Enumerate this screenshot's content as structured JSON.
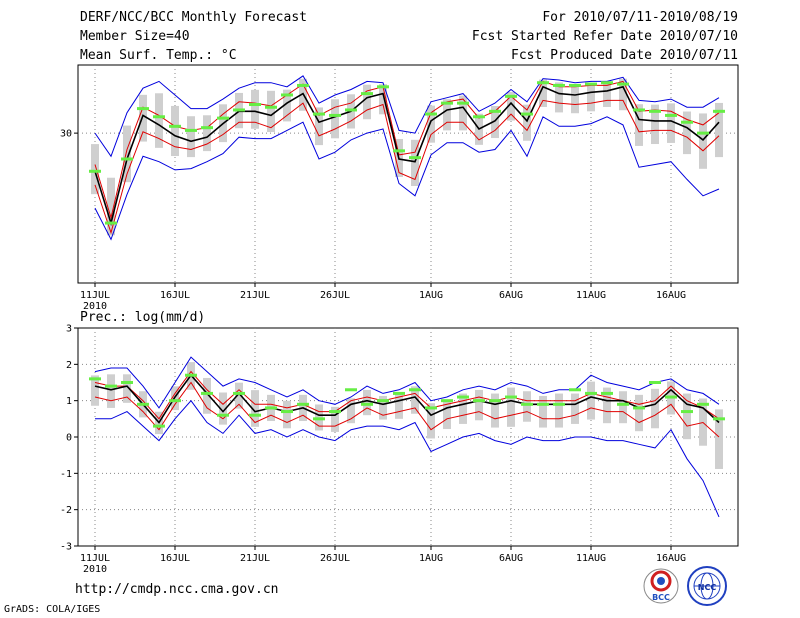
{
  "header": {
    "title": "DERF/NCC/BCC Monthly Forecast",
    "member_size": "Member Size=40",
    "var1_label": "Mean Surf. Temp.: °C",
    "period": "For 2010/07/11-2010/08/19",
    "fcst_started": "Fcst Started Refer Date 2010/07/10",
    "fcst_produced": "Fcst Produced Date 2010/07/11"
  },
  "footer": {
    "url": "http://cmdp.ncc.cma.gov.cn",
    "grads": "GrADS: COLA/IGES",
    "logo_left": "BCC",
    "logo_right": "NCC"
  },
  "colors": {
    "envelope": "#0000dd",
    "spread": "#e00000",
    "mean": "#000000",
    "observed": "#66ee44",
    "box": "#cfcfcf",
    "grid": "#888888"
  },
  "chart_data": [
    {
      "type": "line",
      "title": "Mean Surf. Temp.: °C",
      "ylim": [
        19,
        35
      ],
      "yticks": [
        30
      ],
      "x_tick_labels": [
        "11JUL",
        "16JUL",
        "21JUL",
        "26JUL",
        "1AUG",
        "6AUG",
        "11AUG",
        "16AUG"
      ],
      "x_tick_days": [
        0,
        5,
        10,
        15,
        21,
        26,
        31,
        36
      ],
      "year_label": "2010",
      "days": 40,
      "series": [
        {
          "name": "max",
          "values": [
            30.0,
            28.3,
            31.5,
            33.3,
            33.8,
            32.8,
            31.8,
            31.8,
            32.5,
            33.3,
            33.7,
            33.7,
            33.4,
            34.2,
            32.2,
            32.8,
            33.2,
            33.8,
            33.7,
            30.2,
            30.0,
            32.3,
            32.6,
            32.9,
            31.6,
            32.2,
            33.2,
            32.3,
            34.0,
            33.9,
            33.7,
            33.8,
            33.8,
            34.1,
            32.4,
            32.3,
            32.5,
            31.9,
            31.9,
            32.6
          ]
        },
        {
          "name": "upper",
          "values": [
            27.7,
            23.8,
            28.8,
            31.9,
            31.3,
            30.5,
            30.2,
            30.4,
            31.4,
            32.3,
            32.2,
            32.0,
            32.8,
            33.6,
            31.3,
            31.9,
            32.2,
            33.1,
            33.4,
            28.4,
            28.6,
            31.5,
            32.3,
            32.5,
            31.1,
            31.6,
            32.7,
            31.7,
            33.8,
            33.4,
            33.4,
            33.5,
            33.5,
            33.8,
            31.6,
            31.7,
            31.6,
            31.0,
            30.6,
            31.5
          ]
        },
        {
          "name": "mean",
          "values": [
            27.2,
            23.4,
            28.1,
            31.3,
            30.6,
            29.8,
            29.4,
            29.7,
            30.7,
            31.6,
            31.6,
            31.3,
            32.2,
            32.9,
            30.8,
            31.2,
            31.6,
            32.6,
            32.9,
            28.1,
            27.9,
            30.9,
            31.7,
            31.9,
            30.3,
            30.9,
            32.2,
            30.9,
            33.4,
            32.9,
            32.8,
            33.0,
            33.1,
            33.4,
            31.0,
            30.9,
            30.9,
            30.4,
            29.5,
            30.8
          ]
        },
        {
          "name": "lower",
          "values": [
            26.2,
            22.7,
            27.0,
            30.1,
            29.6,
            29.0,
            28.8,
            29.2,
            29.9,
            30.8,
            30.8,
            30.4,
            31.3,
            32.2,
            29.8,
            30.3,
            30.9,
            31.7,
            32.1,
            27.1,
            26.6,
            29.9,
            30.8,
            30.8,
            29.5,
            30.2,
            31.4,
            30.2,
            32.4,
            32.2,
            32.1,
            32.2,
            32.4,
            32.4,
            30.1,
            30.2,
            30.2,
            29.7,
            28.7,
            29.8
          ]
        },
        {
          "name": "min",
          "values": [
            24.5,
            22.2,
            25.5,
            28.3,
            27.9,
            27.3,
            27.4,
            27.9,
            28.5,
            29.7,
            29.6,
            29.6,
            30.2,
            30.8,
            28.1,
            28.6,
            29.5,
            30.0,
            30.3,
            26.3,
            25.4,
            28.4,
            29.3,
            29.3,
            28.6,
            28.8,
            30.2,
            28.3,
            31.2,
            30.5,
            30.5,
            30.7,
            31.2,
            30.6,
            27.5,
            27.7,
            27.9,
            26.6,
            25.4,
            25.9
          ]
        },
        {
          "name": "observed",
          "values": [
            27.2,
            23.4,
            28.1,
            31.8,
            31.2,
            30.5,
            30.2,
            30.4,
            31.1,
            31.7,
            32.1,
            31.9,
            32.8,
            33.5,
            31.4,
            31.3,
            31.7,
            32.9,
            33.4,
            28.7,
            28.2,
            31.4,
            32.2,
            32.2,
            31.2,
            31.6,
            32.7,
            31.4,
            33.7,
            33.5,
            33.5,
            33.6,
            33.7,
            33.6,
            31.7,
            31.6,
            31.3,
            30.8,
            30.0,
            31.6
          ]
        }
      ]
    },
    {
      "type": "line",
      "title": "Prec.: log(mm/d)",
      "ylim": [
        -3,
        3
      ],
      "yticks": [
        -3,
        -2,
        -1,
        0,
        1,
        2,
        3
      ],
      "x_tick_labels": [
        "11JUL",
        "16JUL",
        "21JUL",
        "26JUL",
        "1AUG",
        "6AUG",
        "11AUG",
        "16AUG"
      ],
      "x_tick_days": [
        0,
        5,
        10,
        15,
        21,
        26,
        31,
        36
      ],
      "year_label": "2010",
      "days": 40,
      "series": [
        {
          "name": "max",
          "values": [
            1.8,
            1.9,
            1.9,
            1.4,
            0.8,
            1.5,
            2.2,
            1.8,
            1.4,
            1.6,
            1.5,
            1.3,
            1.1,
            1.3,
            1.0,
            0.9,
            1.1,
            1.4,
            1.2,
            1.3,
            1.5,
            1.0,
            1.1,
            1.3,
            1.4,
            1.3,
            1.5,
            1.4,
            1.2,
            1.3,
            1.3,
            1.7,
            1.5,
            1.4,
            1.3,
            1.5,
            1.6,
            1.3,
            1.2,
            0.9
          ]
        },
        {
          "name": "upper",
          "values": [
            1.5,
            1.4,
            1.4,
            1.0,
            0.5,
            1.2,
            1.8,
            1.3,
            0.9,
            1.3,
            0.9,
            0.9,
            0.8,
            0.9,
            0.7,
            0.7,
            1.0,
            1.1,
            1.0,
            1.1,
            1.2,
            0.8,
            0.9,
            1.0,
            1.1,
            1.0,
            1.1,
            1.0,
            1.0,
            1.0,
            1.0,
            1.2,
            1.1,
            1.0,
            0.9,
            1.0,
            1.4,
            1.0,
            0.8,
            0.5
          ]
        },
        {
          "name": "mean",
          "values": [
            1.4,
            1.3,
            1.4,
            0.9,
            0.4,
            1.1,
            1.7,
            1.2,
            0.7,
            1.2,
            0.7,
            0.8,
            0.7,
            0.8,
            0.6,
            0.6,
            0.9,
            1.0,
            0.9,
            1.0,
            1.1,
            0.6,
            0.8,
            0.9,
            1.0,
            0.9,
            1.0,
            0.9,
            0.9,
            0.9,
            0.9,
            1.1,
            1.0,
            1.0,
            0.8,
            0.9,
            1.3,
            0.9,
            0.8,
            0.4
          ]
        },
        {
          "name": "lower",
          "values": [
            1.1,
            1.0,
            1.1,
            0.7,
            0.2,
            0.9,
            1.5,
            0.8,
            0.5,
            0.9,
            0.4,
            0.6,
            0.4,
            0.6,
            0.3,
            0.3,
            0.5,
            0.8,
            0.6,
            0.7,
            0.8,
            0.2,
            0.5,
            0.6,
            0.7,
            0.5,
            0.6,
            0.7,
            0.5,
            0.5,
            0.6,
            0.8,
            0.7,
            0.7,
            0.4,
            0.6,
            0.9,
            0.3,
            0.4,
            0.0
          ]
        },
        {
          "name": "min",
          "values": [
            0.5,
            0.5,
            0.7,
            0.3,
            -0.1,
            0.5,
            1.0,
            0.4,
            0.1,
            0.6,
            0.1,
            0.2,
            0.0,
            0.2,
            0.0,
            -0.1,
            0.2,
            0.3,
            0.3,
            0.2,
            0.4,
            -0.4,
            -0.2,
            0.0,
            0.1,
            -0.1,
            -0.2,
            0.0,
            -0.1,
            -0.1,
            0.0,
            0.0,
            -0.1,
            -0.1,
            -0.2,
            -0.3,
            0.2,
            -0.6,
            -1.2,
            -2.2
          ]
        },
        {
          "name": "observed",
          "values": [
            1.6,
            1.4,
            1.5,
            0.9,
            0.3,
            1.0,
            1.7,
            1.2,
            0.6,
            1.2,
            0.6,
            0.8,
            0.7,
            0.9,
            0.5,
            0.7,
            1.3,
            0.9,
            1.0,
            1.2,
            1.3,
            0.8,
            1.0,
            1.1,
            1.0,
            1.0,
            1.1,
            0.9,
            0.9,
            0.9,
            1.3,
            1.2,
            1.2,
            0.9,
            0.8,
            1.5,
            1.1,
            0.7,
            0.9,
            0.5
          ]
        }
      ]
    }
  ]
}
